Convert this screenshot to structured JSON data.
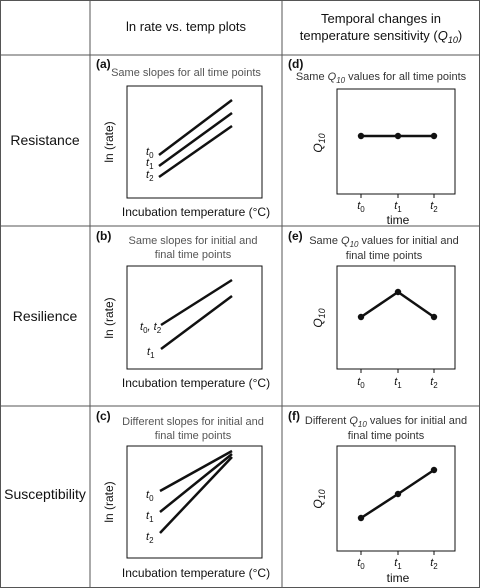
{
  "header": {
    "col1": "ln rate vs. temp plots",
    "col2_line1": "Temporal changes in",
    "col2_line2_prefix": "temperature sensitivity (",
    "col2_q": "Q",
    "col2_sub": "10",
    "col2_suffix": ")"
  },
  "rows": [
    {
      "label": "Resistance",
      "left": {
        "panel": "(a)",
        "caption": [
          "Same slopes for all time points"
        ],
        "xlabel": "Incubation temperature (°C)",
        "ylabel": "ln (rate)",
        "lines": [
          "t0",
          "t1",
          "t2"
        ]
      },
      "right": {
        "panel": "(d)",
        "caption_pre": "Same ",
        "caption_post": " values for all time points",
        "caption2": "",
        "ylabel": "Q10",
        "xticks": [
          "t0",
          "t1",
          "t2"
        ],
        "xlabel": "time",
        "values": [
          1,
          1,
          1
        ]
      }
    },
    {
      "label": "Resilience",
      "left": {
        "panel": "(b)",
        "caption": [
          "Same slopes for initial and",
          "final time points"
        ],
        "xlabel": "Incubation temperature (°C)",
        "ylabel": "ln (rate)",
        "lines": [
          "t0, t2",
          "t1"
        ]
      },
      "right": {
        "panel": "(e)",
        "caption_pre": "Same ",
        "caption_post": " values for initial and",
        "caption2": "final time points",
        "ylabel": "Q10",
        "xticks": [
          "t0",
          "t1",
          "t2"
        ],
        "xlabel": "",
        "values": [
          1,
          2,
          1
        ]
      }
    },
    {
      "label": "Susceptibility",
      "left": {
        "panel": "(c)",
        "caption": [
          "Different slopes for initial and",
          "final time points"
        ],
        "xlabel": "Incubation temperature (°C)",
        "ylabel": "ln (rate)",
        "lines": [
          "t0",
          "t1",
          "t2"
        ]
      },
      "right": {
        "panel": "(f)",
        "caption_pre": "Different ",
        "caption_post": " values for initial and",
        "caption2": "final time points",
        "ylabel": "Q10",
        "xticks": [
          "t0",
          "t1",
          "t2"
        ],
        "xlabel": "time",
        "values": [
          1,
          2,
          3
        ]
      }
    }
  ],
  "colors": {
    "border": "#555555",
    "line": "#111111",
    "caption": "#555555"
  }
}
